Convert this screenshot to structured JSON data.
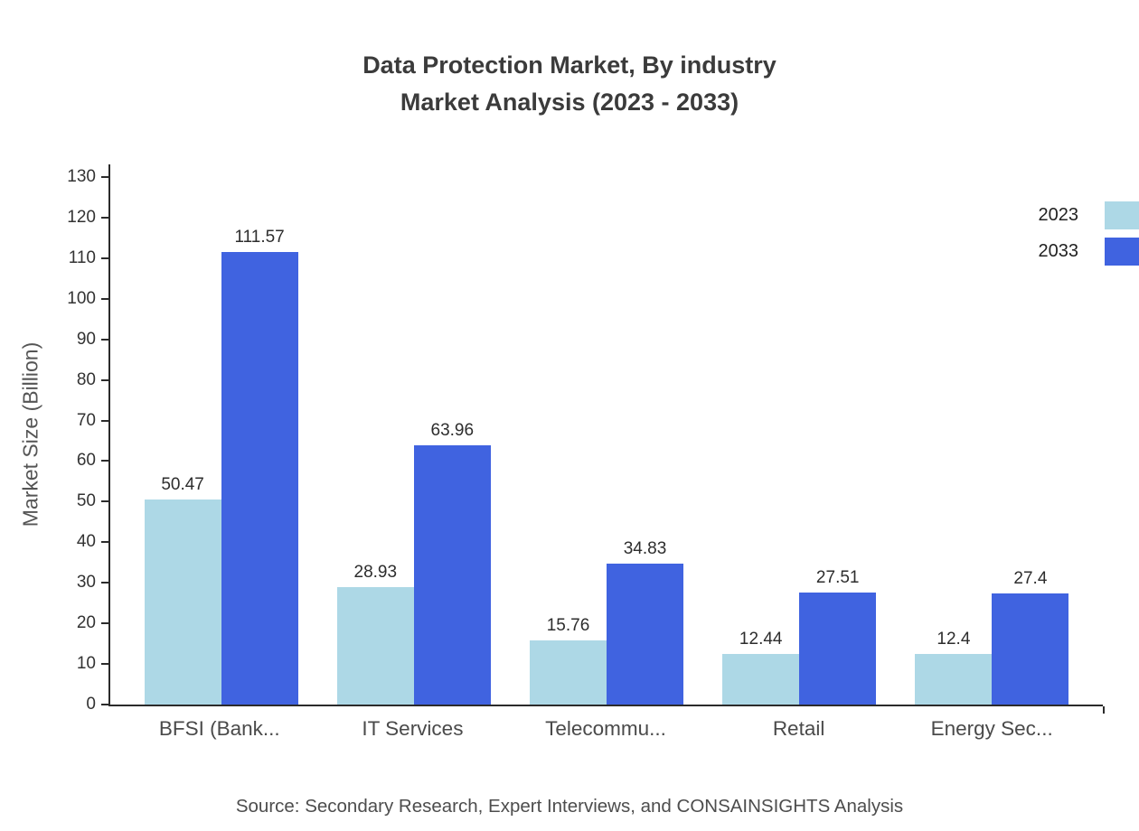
{
  "title": {
    "line1": "Data Protection Market, By industry",
    "line2": "Market Analysis (2023 - 2033)"
  },
  "footer": "Source: Secondary Research, Expert Interviews, and CONSAINSIGHTS Analysis",
  "chart_data": {
    "type": "bar",
    "title": "Data Protection Market, By industry — Market Analysis (2023 - 2033)",
    "categories": [
      "BFSI (Bank...",
      "IT Services",
      "Telecommu...",
      "Retail",
      "Energy Sec..."
    ],
    "series": [
      {
        "name": "2023",
        "color": "#add8e6",
        "values": [
          50.47,
          28.93,
          15.76,
          12.44,
          12.4
        ]
      },
      {
        "name": "2033",
        "color": "#4063e0",
        "values": [
          111.57,
          63.96,
          34.83,
          27.51,
          27.4
        ]
      }
    ],
    "xlabel": "",
    "ylabel": "Market Size (Billion)",
    "ylim": [
      0,
      130
    ],
    "ytick_step": 10,
    "grid": false,
    "legend_position": "top-right"
  }
}
